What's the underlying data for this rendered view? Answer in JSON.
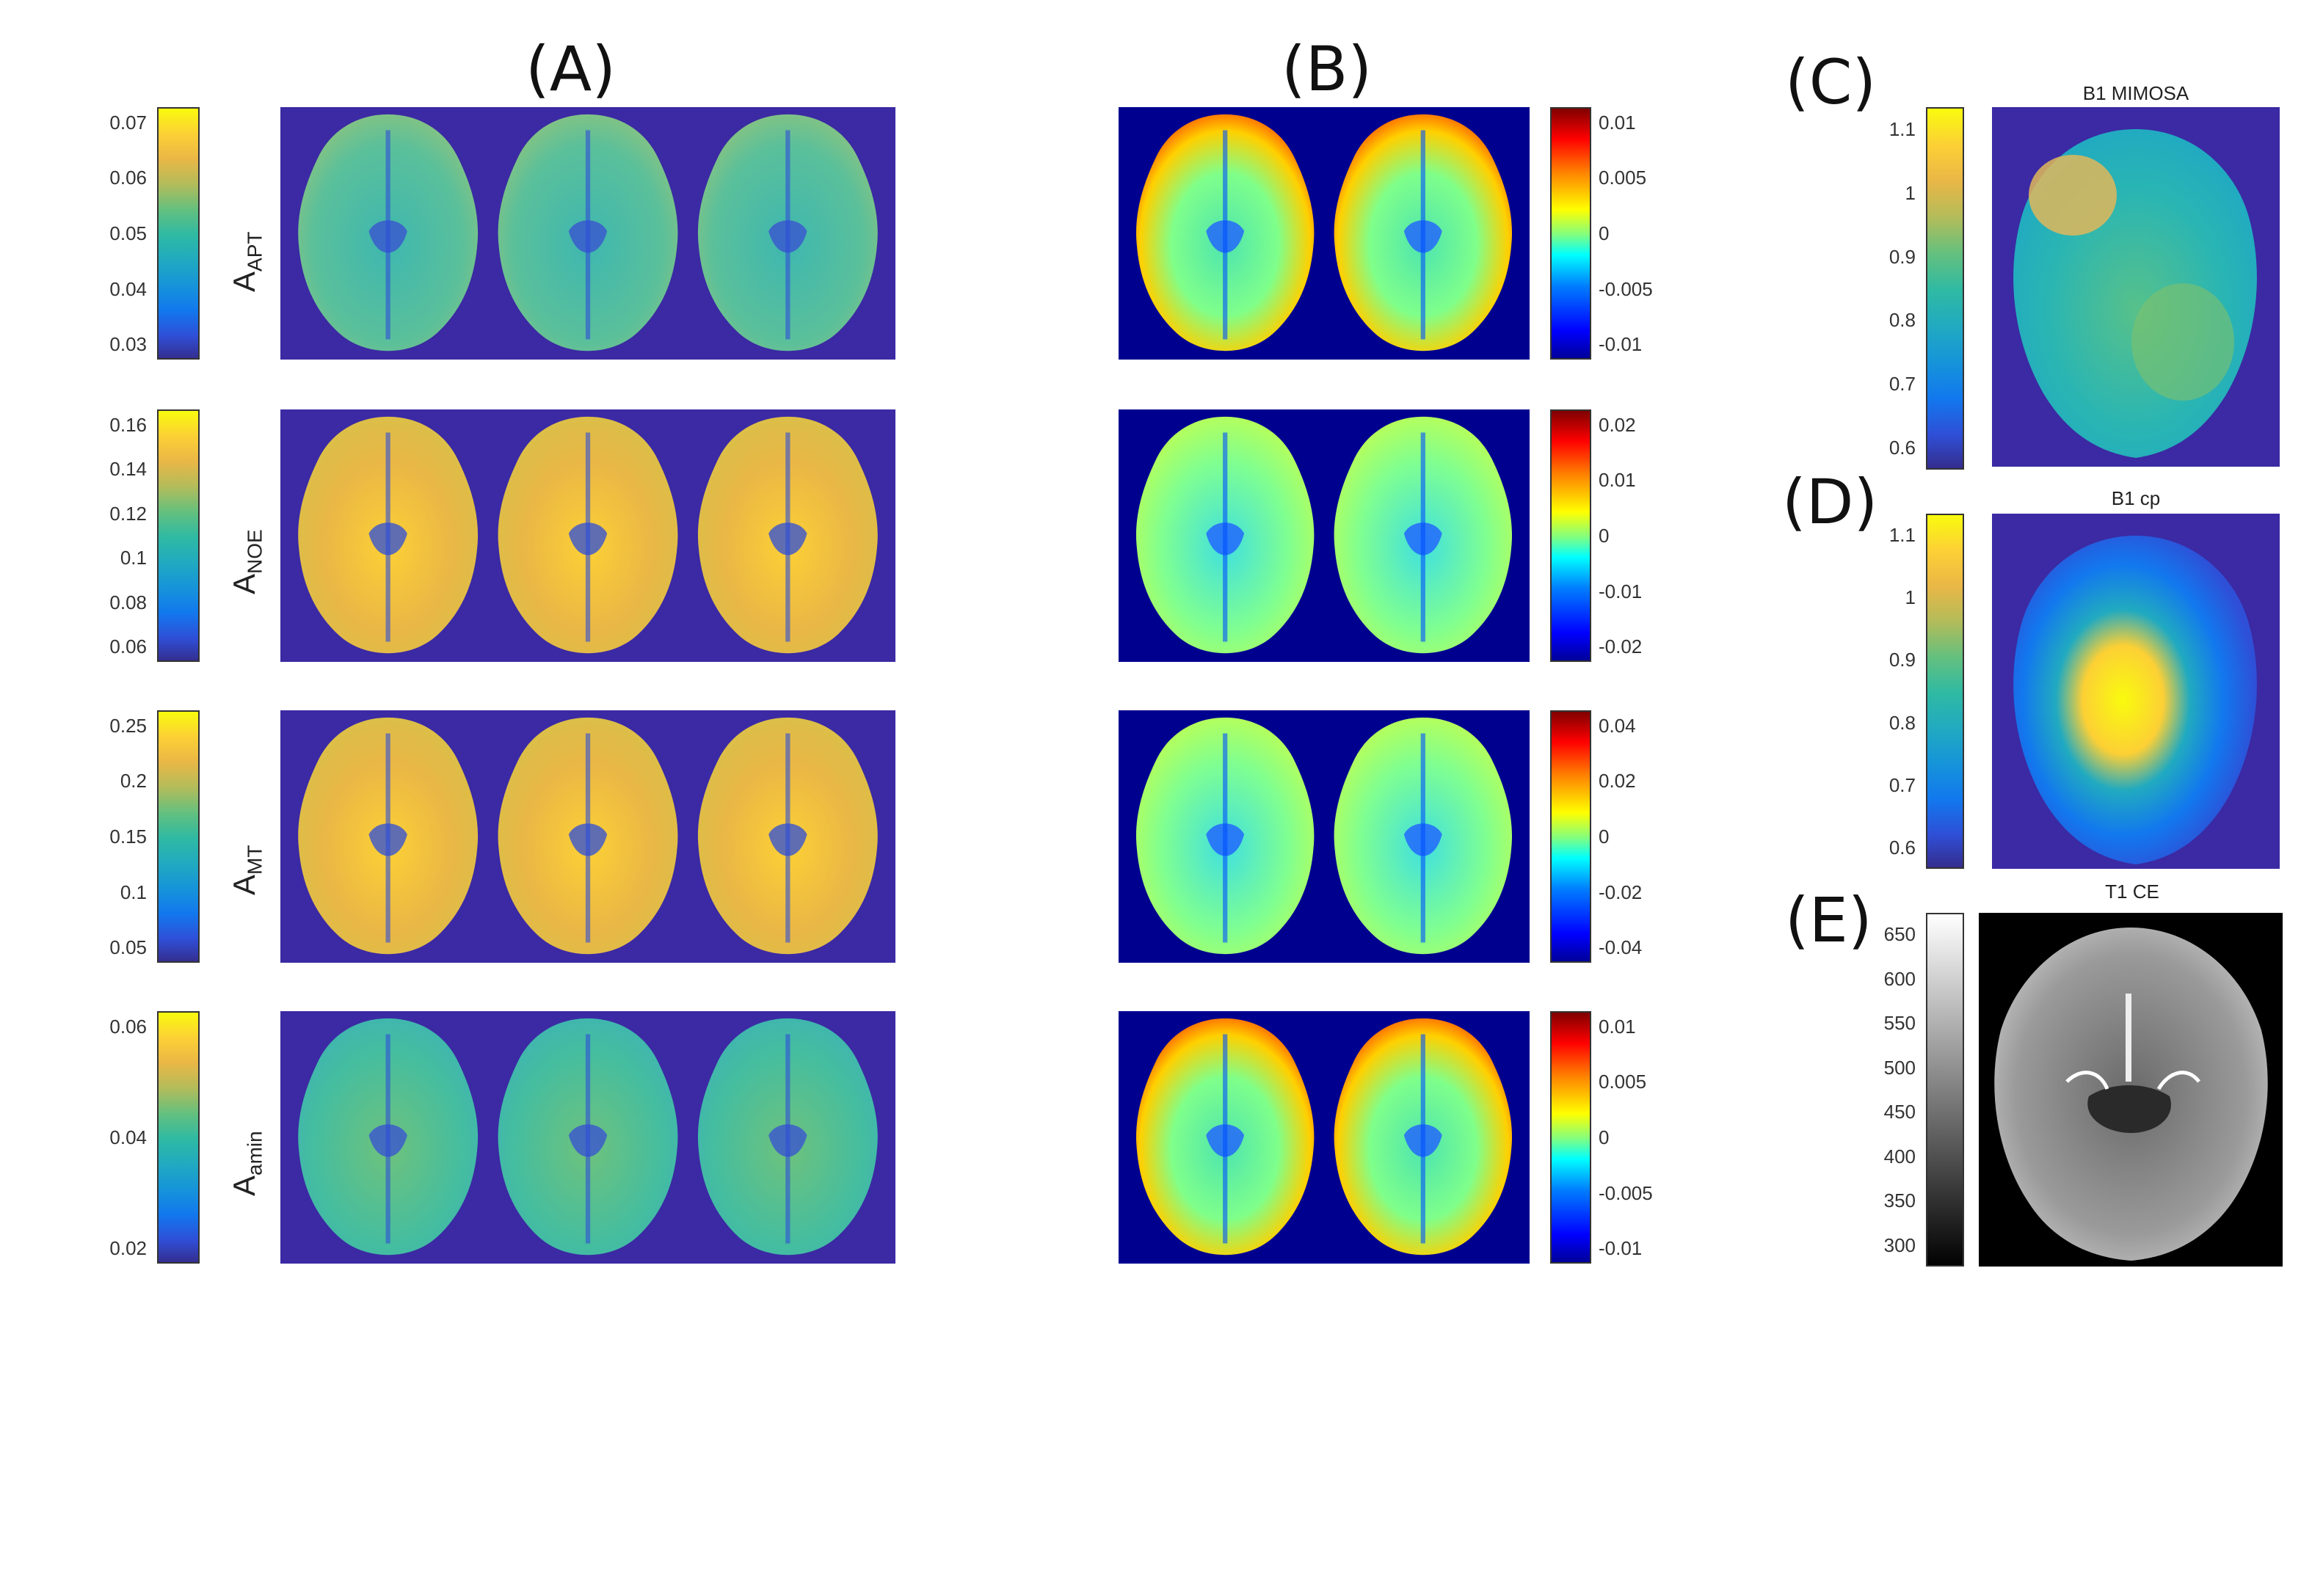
{
  "colors": {
    "background_blue": "#3b2aa3",
    "background_black": "#000000",
    "parula": [
      "#352a87",
      "#2f4fd7",
      "#1278ee",
      "#1694d9",
      "#21aac0",
      "#2fbaa3",
      "#64c07e",
      "#b3bc5a",
      "#e9b746",
      "#fcd035",
      "#f9fb0e"
    ],
    "jet": [
      "#00008f",
      "#0000ff",
      "#0080ff",
      "#00ffff",
      "#80ff80",
      "#ffff00",
      "#ff8000",
      "#ff0000",
      "#800000"
    ],
    "gray": [
      "#000000",
      "#ffffff"
    ]
  },
  "panels": {
    "A": {
      "label": "(A)",
      "rows": [
        {
          "ylabel_main": "A",
          "ylabel_sub": "APT",
          "ticks": [
            "0.07",
            "0.06",
            "0.05",
            "0.04",
            "0.03"
          ]
        },
        {
          "ylabel_main": "A",
          "ylabel_sub": "NOE",
          "ticks": [
            "0.16",
            "0.14",
            "0.12",
            "0.1",
            "0.08",
            "0.06"
          ]
        },
        {
          "ylabel_main": "A",
          "ylabel_sub": "MT",
          "ticks": [
            "0.25",
            "0.2",
            "0.15",
            "0.1",
            "0.05"
          ]
        },
        {
          "ylabel_main": "A",
          "ylabel_sub": "amin",
          "ticks": [
            "0.06",
            "0.04",
            "0.02"
          ]
        }
      ]
    },
    "B": {
      "label": "(B)",
      "rows": [
        {
          "ticks": [
            "0.01",
            "0.005",
            "0",
            "-0.005",
            "-0.01"
          ]
        },
        {
          "ticks": [
            "0.02",
            "0.01",
            "0",
            "-0.01",
            "-0.02"
          ]
        },
        {
          "ticks": [
            "0.04",
            "0.02",
            "0",
            "-0.02",
            "-0.04"
          ]
        },
        {
          "ticks": [
            "0.01",
            "0.005",
            "0",
            "-0.005",
            "-0.01"
          ]
        }
      ]
    },
    "C": {
      "label": "(C)",
      "title": "B1 MIMOSA",
      "ticks": [
        "1.1",
        "1",
        "0.9",
        "0.8",
        "0.7",
        "0.6"
      ]
    },
    "D": {
      "label": "(D)",
      "title": "B1 cp",
      "ticks": [
        "1.1",
        "1",
        "0.9",
        "0.8",
        "0.7",
        "0.6"
      ]
    },
    "E": {
      "label": "(E)",
      "title": "T1 CE",
      "ticks": [
        "650",
        "600",
        "550",
        "500",
        "450",
        "400",
        "350",
        "300"
      ]
    }
  }
}
